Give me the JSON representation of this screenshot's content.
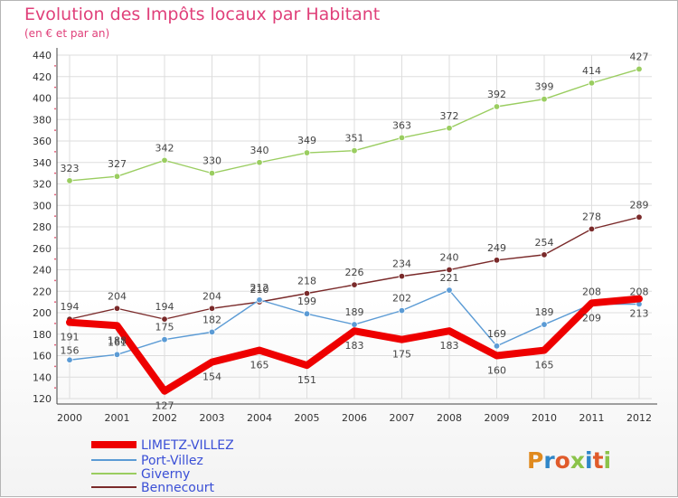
{
  "title": "Evolution des Impôts locaux par Habitant",
  "subtitle": "(en € et par an)",
  "logo_text": "Proxiti",
  "chart_data": {
    "type": "line",
    "title": "Evolution des Impôts locaux par Habitant",
    "subtitle": "(en € et par an)",
    "xlabel": "",
    "ylabel": "",
    "x": [
      "2000",
      "2001",
      "2002",
      "2003",
      "2004",
      "2005",
      "2006",
      "2007",
      "2008",
      "2009",
      "2010",
      "2011",
      "2012"
    ],
    "ylim": [
      120,
      440
    ],
    "yticks": [
      120,
      140,
      160,
      180,
      200,
      220,
      240,
      260,
      280,
      300,
      320,
      340,
      360,
      380,
      400,
      420,
      440
    ],
    "grid": true,
    "legend_position": "bottom-left",
    "series": [
      {
        "name": "LIMETZ-VILLEZ",
        "color": "#ee0000",
        "values": [
          191,
          188,
          127,
          154,
          165,
          151,
          183,
          175,
          183,
          160,
          165,
          209,
          213
        ]
      },
      {
        "name": "Port-Villez",
        "color": "#5b9bd5",
        "values": [
          156,
          161,
          175,
          182,
          212,
          199,
          189,
          202,
          221,
          169,
          189,
          208,
          208
        ]
      },
      {
        "name": "Giverny",
        "color": "#9acd60",
        "values": [
          323,
          327,
          342,
          330,
          340,
          349,
          351,
          363,
          372,
          392,
          399,
          414,
          427
        ]
      },
      {
        "name": "Bennecourt",
        "color": "#7a2a2a",
        "values": [
          194,
          204,
          194,
          204,
          210,
          218,
          226,
          234,
          240,
          249,
          254,
          278,
          289
        ]
      }
    ]
  }
}
